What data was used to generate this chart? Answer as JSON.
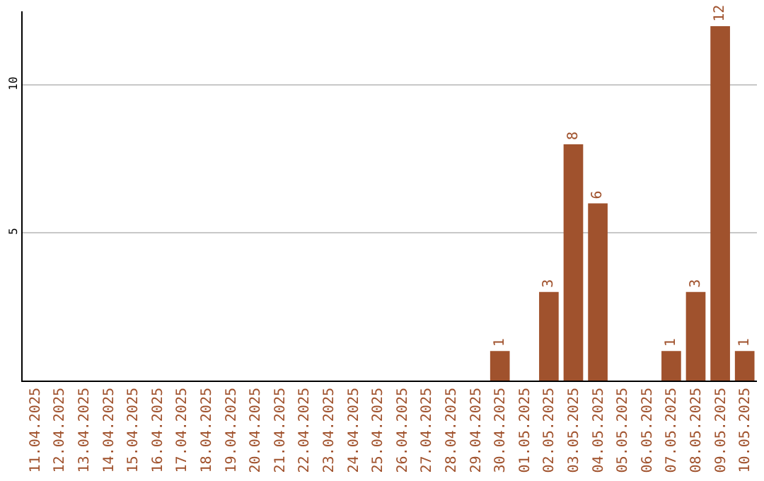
{
  "chart_data": {
    "type": "bar",
    "categories": [
      "11.04.2025",
      "12.04.2025",
      "13.04.2025",
      "14.04.2025",
      "15.04.2025",
      "16.04.2025",
      "17.04.2025",
      "18.04.2025",
      "19.04.2025",
      "20.04.2025",
      "21.04.2025",
      "22.04.2025",
      "23.04.2025",
      "24.04.2025",
      "25.04.2025",
      "26.04.2025",
      "27.04.2025",
      "28.04.2025",
      "29.04.2025",
      "30.04.2025",
      "01.05.2025",
      "02.05.2025",
      "03.05.2025",
      "04.05.2025",
      "05.05.2025",
      "06.05.2025",
      "07.05.2025",
      "08.05.2025",
      "09.05.2025",
      "10.05.2025"
    ],
    "values": [
      0,
      0,
      0,
      0,
      0,
      0,
      0,
      0,
      0,
      0,
      0,
      0,
      0,
      0,
      0,
      0,
      0,
      0,
      0,
      1,
      0,
      3,
      8,
      6,
      0,
      0,
      1,
      3,
      12,
      1
    ],
    "value_labels": [
      null,
      null,
      null,
      null,
      null,
      null,
      null,
      null,
      null,
      null,
      null,
      null,
      null,
      null,
      null,
      null,
      null,
      null,
      null,
      "1",
      null,
      "3",
      "8",
      "6",
      null,
      null,
      "1",
      "3",
      "12",
      "1"
    ],
    "color": "#a0522d",
    "ylim": [
      0,
      12.5
    ],
    "yticks": [
      5,
      10
    ],
    "grid": "y"
  }
}
